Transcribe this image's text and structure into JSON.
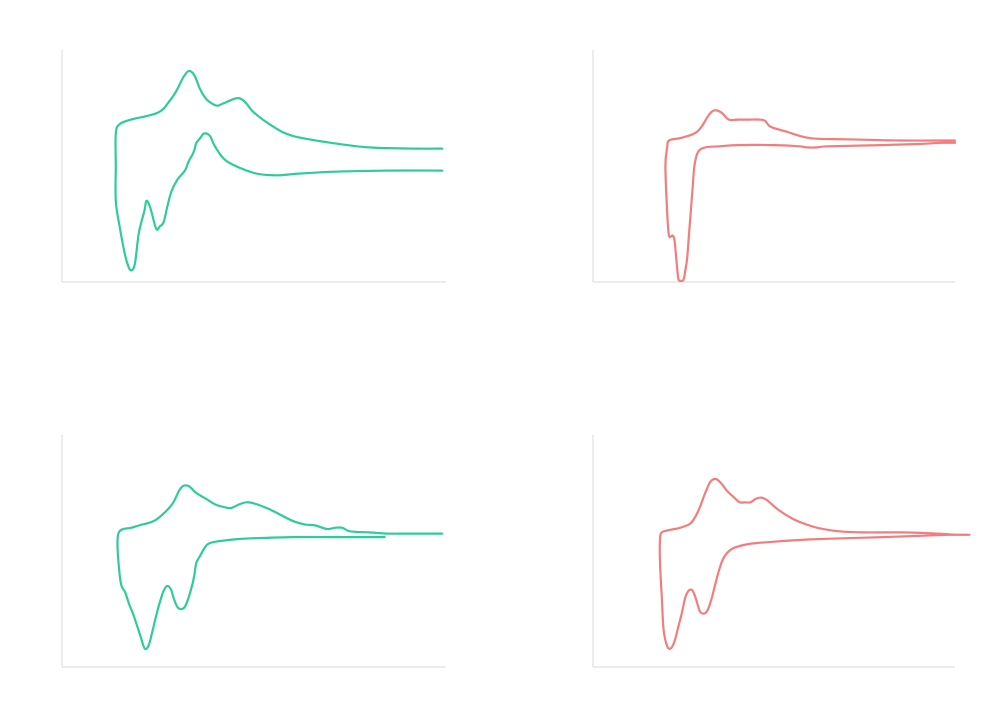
{
  "chart_data": [
    {
      "type": "line",
      "title": "",
      "xlabel": "",
      "ylabel": "",
      "grid": false,
      "legend": "none",
      "xlim": [
        0,
        100
      ],
      "ylim": [
        0,
        100
      ],
      "color": "#2ecc9a",
      "series": [
        {
          "values": [
            [
              99,
              48
            ],
            [
              85,
              48
            ],
            [
              70,
              47.5
            ],
            [
              60,
              46.5
            ],
            [
              56,
              46
            ],
            [
              50,
              47
            ],
            [
              43,
              52
            ],
            [
              40,
              58
            ],
            [
              38.5,
              63
            ],
            [
              37,
              64
            ],
            [
              36,
              62
            ],
            [
              35,
              60
            ],
            [
              34.5,
              57
            ],
            [
              34,
              55
            ],
            [
              33,
              52
            ],
            [
              32,
              48
            ],
            [
              30,
              44
            ],
            [
              28.5,
              39
            ],
            [
              27.5,
              33
            ],
            [
              26.5,
              26
            ],
            [
              25.5,
              24
            ],
            [
              24.5,
              23
            ],
            [
              23,
              32
            ],
            [
              22,
              35
            ],
            [
              21.5,
              31
            ],
            [
              20,
              21
            ],
            [
              19,
              8
            ],
            [
              18,
              5
            ],
            [
              17,
              8
            ],
            [
              16,
              15
            ],
            [
              15,
              24
            ],
            [
              14,
              35
            ],
            [
              14,
              50
            ],
            [
              14,
              64
            ],
            [
              15,
              68
            ],
            [
              18,
              70
            ],
            [
              25,
              73
            ],
            [
              28,
              78
            ],
            [
              30,
              83
            ],
            [
              31.5,
              88
            ],
            [
              33,
              91
            ],
            [
              34.5,
              89
            ],
            [
              36,
              83
            ],
            [
              37.5,
              79
            ],
            [
              39,
              77
            ],
            [
              40.5,
              76
            ],
            [
              42,
              77
            ],
            [
              45,
              79
            ],
            [
              46.5,
              79
            ],
            [
              48,
              77
            ],
            [
              50,
              73
            ],
            [
              55,
              67
            ],
            [
              60,
              63
            ],
            [
              70,
              60
            ],
            [
              80,
              58
            ],
            [
              92,
              57.5
            ],
            [
              99,
              57.5
            ]
          ]
        }
      ]
    },
    {
      "type": "line",
      "title": "",
      "xlabel": "",
      "ylabel": "",
      "grid": false,
      "legend": "none",
      "xlim": [
        0,
        100
      ],
      "ylim": [
        0,
        100
      ],
      "color": "#f47c7c",
      "series": [
        {
          "values": [
            [
              100,
              60
            ],
            [
              96,
              60
            ],
            [
              90,
              59.5
            ],
            [
              80,
              59
            ],
            [
              65,
              58.5
            ],
            [
              62,
              58
            ],
            [
              59,
              58
            ],
            [
              57,
              58.5
            ],
            [
              50,
              59
            ],
            [
              40,
              59
            ],
            [
              35,
              58.5
            ],
            [
              31,
              58
            ],
            [
              29,
              56
            ],
            [
              28,
              50
            ],
            [
              27.5,
              40
            ],
            [
              27,
              30
            ],
            [
              26.5,
              20
            ],
            [
              26,
              10
            ],
            [
              25.5,
              5
            ],
            [
              25,
              1
            ],
            [
              24,
              0.5
            ],
            [
              23.5,
              2
            ],
            [
              23,
              10
            ],
            [
              22.5,
              18
            ],
            [
              22,
              20
            ],
            [
              21,
              20
            ],
            [
              20.5,
              30
            ],
            [
              20,
              50
            ],
            [
              20.5,
              58
            ],
            [
              21,
              61
            ],
            [
              24,
              62
            ],
            [
              28,
              64
            ],
            [
              30,
              67
            ],
            [
              32,
              72
            ],
            [
              33.5,
              74
            ],
            [
              35.5,
              73
            ],
            [
              37.5,
              70
            ],
            [
              40,
              70
            ],
            [
              43,
              70
            ],
            [
              46,
              70
            ],
            [
              47.5,
              69.5
            ],
            [
              49,
              67
            ],
            [
              53,
              65
            ],
            [
              60,
              62
            ],
            [
              70,
              61.5
            ],
            [
              85,
              61
            ],
            [
              100,
              61
            ]
          ]
        }
      ]
    },
    {
      "type": "line",
      "title": "",
      "xlabel": "",
      "ylabel": "",
      "grid": false,
      "legend": "none",
      "xlim": [
        0,
        100
      ],
      "ylim": [
        0,
        100
      ],
      "color": "#2ecc9a",
      "series": [
        {
          "values": [
            [
              84,
              56
            ],
            [
              70,
              56
            ],
            [
              60,
              56
            ],
            [
              50,
              55.5
            ],
            [
              45,
              55
            ],
            [
              40,
              54
            ],
            [
              38,
              53
            ],
            [
              37,
              51
            ],
            [
              36,
              48
            ],
            [
              35,
              45
            ],
            [
              34.5,
              40
            ],
            [
              34,
              36
            ],
            [
              33,
              30
            ],
            [
              32,
              26
            ],
            [
              31,
              25
            ],
            [
              30,
              26
            ],
            [
              29,
              30
            ],
            [
              28.5,
              33
            ],
            [
              27.5,
              35
            ],
            [
              26.5,
              33
            ],
            [
              25.5,
              28
            ],
            [
              24.5,
              22
            ],
            [
              23.5,
              15
            ],
            [
              22.5,
              9
            ],
            [
              21.5,
              8
            ],
            [
              20.5,
              13
            ],
            [
              19.5,
              18
            ],
            [
              18.5,
              23
            ],
            [
              17.5,
              27
            ],
            [
              16.5,
              32
            ],
            [
              15.5,
              35
            ],
            [
              15,
              40
            ],
            [
              14.5,
              50
            ],
            [
              14.5,
              56
            ],
            [
              15,
              58.5
            ],
            [
              16,
              59.5
            ],
            [
              18,
              60
            ],
            [
              20,
              61
            ],
            [
              24,
              63
            ],
            [
              27,
              67
            ],
            [
              29,
              71
            ],
            [
              30.5,
              76
            ],
            [
              31.5,
              78
            ],
            [
              33,
              78
            ],
            [
              35,
              75
            ],
            [
              38,
              72
            ],
            [
              40,
              70
            ],
            [
              42,
              69
            ],
            [
              44,
              68.5
            ],
            [
              46,
              70
            ],
            [
              48,
              71
            ],
            [
              50,
              70.5
            ],
            [
              54,
              68
            ],
            [
              57,
              65.5
            ],
            [
              60,
              63
            ],
            [
              63,
              61.5
            ],
            [
              66,
              61
            ],
            [
              69,
              59.5
            ],
            [
              71,
              60
            ],
            [
              73,
              60
            ],
            [
              75,
              58.5
            ],
            [
              80,
              58
            ],
            [
              85,
              57.5
            ],
            [
              90,
              57.5
            ],
            [
              99,
              57.5
            ]
          ]
        }
      ]
    },
    {
      "type": "line",
      "title": "",
      "xlabel": "",
      "ylabel": "",
      "grid": false,
      "legend": "none",
      "xlim": [
        0,
        100
      ],
      "ylim": [
        0,
        100
      ],
      "color": "#f47c7c",
      "series": [
        {
          "values": [
            [
              104,
              57
            ],
            [
              98,
              57
            ],
            [
              90,
              56.5
            ],
            [
              80,
              56
            ],
            [
              70,
              55.5
            ],
            [
              60,
              55
            ],
            [
              50,
              54
            ],
            [
              43,
              53
            ],
            [
              38.5,
              51
            ],
            [
              36.5,
              48
            ],
            [
              35.5,
              45
            ],
            [
              34.5,
              40
            ],
            [
              33.5,
              34
            ],
            [
              32.5,
              28
            ],
            [
              31.5,
              24
            ],
            [
              30.5,
              23
            ],
            [
              29.5,
              24
            ],
            [
              28.5,
              29
            ],
            [
              27.5,
              33
            ],
            [
              26.5,
              33
            ],
            [
              25.5,
              30
            ],
            [
              24.5,
              23
            ],
            [
              23.5,
              17
            ],
            [
              22.5,
              11
            ],
            [
              21.5,
              8
            ],
            [
              20.5,
              9
            ],
            [
              19.5,
              16
            ],
            [
              19,
              30
            ],
            [
              18.5,
              45
            ],
            [
              18.5,
              55
            ],
            [
              19,
              58
            ],
            [
              21,
              59
            ],
            [
              24,
              60
            ],
            [
              27,
              62
            ],
            [
              29,
              67
            ],
            [
              31,
              75
            ],
            [
              32.5,
              80
            ],
            [
              34,
              81
            ],
            [
              35.5,
              79
            ],
            [
              37,
              76
            ],
            [
              39,
              73
            ],
            [
              40.5,
              71
            ],
            [
              42,
              71
            ],
            [
              43.5,
              71
            ],
            [
              45,
              72.5
            ],
            [
              46.5,
              73
            ],
            [
              48,
              72
            ],
            [
              51,
              68
            ],
            [
              55,
              64
            ],
            [
              58,
              62
            ],
            [
              62,
              60
            ],
            [
              68,
              58.5
            ],
            [
              75,
              58
            ],
            [
              85,
              58
            ],
            [
              95,
              57.5
            ],
            [
              100,
              57
            ]
          ]
        }
      ]
    }
  ]
}
